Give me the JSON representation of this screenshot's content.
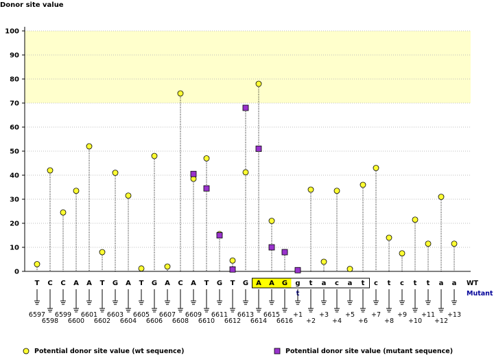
{
  "chart_data": {
    "type": "scatter",
    "ylabel": "Donor site value",
    "ylim": [
      0,
      100
    ],
    "yticks": [
      0,
      10,
      20,
      30,
      40,
      50,
      60,
      70,
      80,
      90,
      100
    ],
    "highlight_band": [
      70,
      100
    ],
    "grid": true,
    "row_labels": {
      "wt": "WT",
      "mutant": "Mutant"
    },
    "sequence": [
      {
        "base": "T",
        "pos": "6597",
        "wt": 3
      },
      {
        "base": "C",
        "pos": "6598",
        "wt": 42
      },
      {
        "base": "C",
        "pos": "6599",
        "wt": 24.5
      },
      {
        "base": "A",
        "pos": "6600",
        "wt": 33.5
      },
      {
        "base": "A",
        "pos": "6601",
        "wt": 52
      },
      {
        "base": "T",
        "pos": "6602",
        "wt": 8
      },
      {
        "base": "G",
        "pos": "6603",
        "wt": 41
      },
      {
        "base": "A",
        "pos": "6604",
        "wt": 31.5
      },
      {
        "base": "T",
        "pos": "6605",
        "wt": 1.2
      },
      {
        "base": "G",
        "pos": "6606",
        "wt": 48
      },
      {
        "base": "A",
        "pos": "6607",
        "wt": 2
      },
      {
        "base": "C",
        "pos": "6608",
        "wt": 74
      },
      {
        "base": "A",
        "pos": "6609",
        "wt": 38.5,
        "mut": 40.5
      },
      {
        "base": "T",
        "pos": "6610",
        "wt": 47,
        "mut": 34.5
      },
      {
        "base": "G",
        "pos": "6611",
        "wt": 15.5,
        "mut": 15
      },
      {
        "base": "T",
        "pos": "6612",
        "wt": 4.5,
        "mut": 0.8
      },
      {
        "base": "G",
        "pos": "6613",
        "wt": 41.2,
        "mut": 68
      },
      {
        "base": "A",
        "pos": "6614",
        "wt": 78,
        "mut": 51,
        "hl": true
      },
      {
        "base": "A",
        "pos": "6615",
        "wt": 21,
        "mut": 10,
        "hl": true
      },
      {
        "base": "G",
        "pos": "6616",
        "wt": 8,
        "mut": 8,
        "hl": true
      },
      {
        "base": "g",
        "pos": "+1",
        "wt": 0.5,
        "mut": 0.5,
        "mutant_base": "t",
        "boxed": true
      },
      {
        "base": "t",
        "pos": "+2",
        "wt": 34,
        "boxed": true
      },
      {
        "base": "a",
        "pos": "+3",
        "wt": 4,
        "boxed": true
      },
      {
        "base": "c",
        "pos": "+4",
        "wt": 33.5,
        "boxed": true
      },
      {
        "base": "a",
        "pos": "+5",
        "wt": 1,
        "boxed": true
      },
      {
        "base": "t",
        "pos": "+6",
        "wt": 36,
        "boxed": true
      },
      {
        "base": "c",
        "pos": "+7",
        "wt": 43
      },
      {
        "base": "t",
        "pos": "+8",
        "wt": 14
      },
      {
        "base": "c",
        "pos": "+9",
        "wt": 7.5
      },
      {
        "base": "t",
        "pos": "+10",
        "wt": 21.5
      },
      {
        "base": "t",
        "pos": "+11",
        "wt": 11.5
      },
      {
        "base": "a",
        "pos": "+12",
        "wt": 31
      },
      {
        "base": "a",
        "pos": "+13",
        "wt": 11.5
      }
    ],
    "legend": [
      {
        "label": "Potential donor site value (wt sequence)",
        "marker": "circle",
        "color": "#ffff33"
      },
      {
        "label": "Potential donor site value (mutant sequence)",
        "marker": "square",
        "color": "#9933cc"
      }
    ],
    "colors": {
      "wt_fill": "#ffff33",
      "mut_fill": "#9933cc",
      "band": "#ffffcc",
      "highlight_box": "#ffff00",
      "mutant_label": "#000099"
    }
  }
}
